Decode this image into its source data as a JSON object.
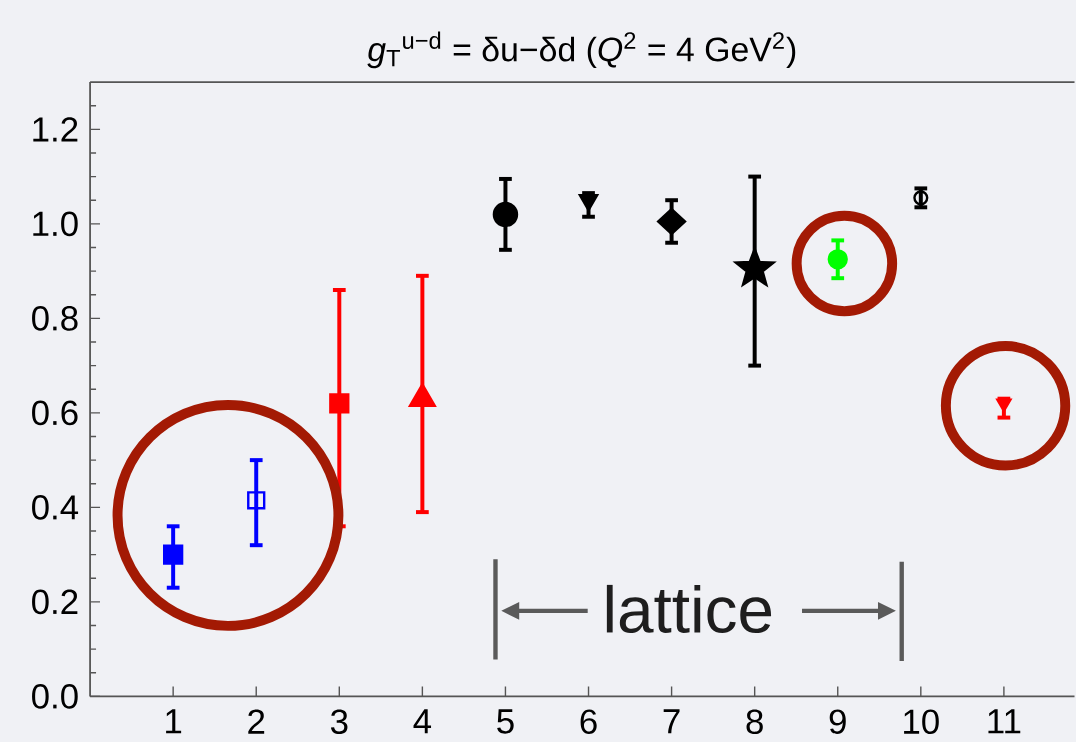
{
  "chart_data": {
    "type": "scatter",
    "title": "*g*$_{T}$$^{u−d}$ = δu−δd (*Q*$^{2}$ = 4 GeV$^{2}$)",
    "annotations": [
      "lattice"
    ],
    "xlim": [
      0,
      11.85
    ],
    "ylim": [
      0,
      1.3
    ],
    "xticks": [
      1,
      2,
      3,
      4,
      5,
      6,
      7,
      8,
      9,
      10,
      11
    ],
    "yticks": [
      {
        "value": 0,
        "label": "0.0"
      },
      {
        "value": 0.05,
        "label": null
      },
      {
        "value": 0.1,
        "label": null
      },
      {
        "value": 0.15,
        "label": null
      },
      0.2,
      {
        "value": 0.25,
        "label": null
      },
      {
        "value": 0.3,
        "label": null
      },
      {
        "value": 0.35,
        "label": null
      },
      0.4,
      {
        "value": 0.45,
        "label": null
      },
      {
        "value": 0.5,
        "label": null
      },
      {
        "value": 0.55,
        "label": null
      },
      0.6,
      {
        "value": 0.65,
        "label": null
      },
      {
        "value": 0.7,
        "label": null
      },
      {
        "value": 0.75,
        "label": null
      },
      0.8,
      {
        "value": 0.85,
        "label": null
      },
      {
        "value": 0.9,
        "label": null
      },
      {
        "value": 0.95,
        "label": null
      },
      {
        "value": 1,
        "label": "1.0"
      },
      {
        "value": 1.05,
        "label": null
      },
      {
        "value": 1.1,
        "label": null
      },
      {
        "value": 1.15,
        "label": null
      },
      1.2,
      {
        "value": 1.25,
        "label": null
      }
    ],
    "series": [
      {
        "x": [
          1
        ],
        "values": [
          0.3
        ],
        "errors": [
          [
            0.23,
            0.36
          ]
        ],
        "color": "#0000ff",
        "marker": "square"
      },
      {
        "x": [
          2
        ],
        "values": [
          0.415
        ],
        "errors": [
          [
            0.32,
            0.5
          ]
        ],
        "color": "#0000ff",
        "marker": "square-open"
      },
      {
        "x": [
          3
        ],
        "values": [
          0.62
        ],
        "errors": [
          [
            0.36,
            0.86
          ]
        ],
        "color": "#ff0000",
        "marker": "square"
      },
      {
        "x": [
          4
        ],
        "values": [
          0.63
        ],
        "errors": [
          [
            0.39,
            0.89
          ]
        ],
        "color": "#ff0000",
        "marker": "triangle"
      },
      {
        "x": [
          5
        ],
        "values": [
          1.02
        ],
        "errors": [
          [
            0.945,
            1.095
          ]
        ],
        "color": "#000000",
        "marker": "circle"
      },
      {
        "x": [
          6
        ],
        "values": [
          1.05
        ],
        "errors": [
          [
            1.015,
            1.065
          ]
        ],
        "color": "#000000",
        "marker": "triangle-down"
      },
      {
        "x": [
          7
        ],
        "values": [
          1.005
        ],
        "errors": [
          [
            0.96,
            1.05
          ]
        ],
        "color": "#000000",
        "marker": "diamond"
      },
      {
        "x": [
          8
        ],
        "values": [
          0.905
        ],
        "errors": [
          [
            0.7,
            1.1
          ]
        ],
        "color": "#000000",
        "marker": "star"
      },
      {
        "x": [
          9
        ],
        "values": [
          0.925
        ],
        "errors": [
          [
            0.885,
            0.965
          ]
        ],
        "color": "#00ff00",
        "marker": "circle"
      },
      {
        "x": [
          10
        ],
        "values": [
          1.055
        ],
        "errors": [
          [
            1.035,
            1.075
          ]
        ],
        "color": "#000000",
        "marker": "circle-open"
      },
      {
        "x": [
          11
        ],
        "values": [
          0.62
        ],
        "errors": [
          [
            0.59,
            0.63
          ]
        ],
        "color": "#ff0000",
        "marker": "triangle-down"
      }
    ]
  }
}
